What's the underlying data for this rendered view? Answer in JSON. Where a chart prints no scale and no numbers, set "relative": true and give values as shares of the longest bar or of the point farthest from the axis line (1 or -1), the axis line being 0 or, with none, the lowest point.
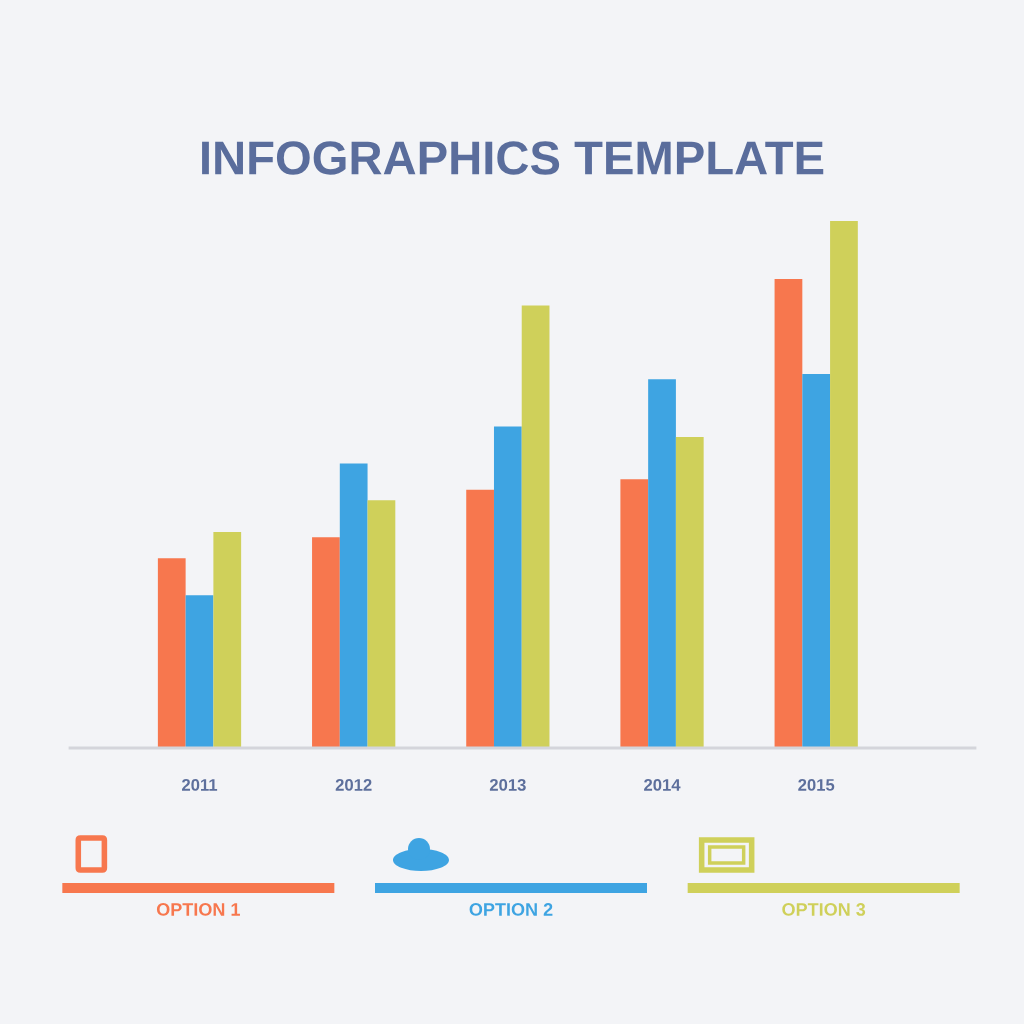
{
  "chart_data": {
    "type": "bar",
    "title": "INFOGRAPHICS TEMPLATE",
    "categories": [
      "2011",
      "2012",
      "2013",
      "2014",
      "2015"
    ],
    "relative": true,
    "series": [
      {
        "name": "OPTION 1",
        "color": "#f7774e",
        "values": [
          0.36,
          0.4,
          0.49,
          0.51,
          0.89
        ]
      },
      {
        "name": "OPTION 2",
        "color": "#3ea4e2",
        "values": [
          0.29,
          0.54,
          0.61,
          0.7,
          0.71
        ]
      },
      {
        "name": "OPTION 3",
        "color": "#cfd05a",
        "values": [
          0.41,
          0.47,
          0.84,
          0.59,
          1.0
        ]
      }
    ],
    "legend": "bottom",
    "grid": false
  }
}
